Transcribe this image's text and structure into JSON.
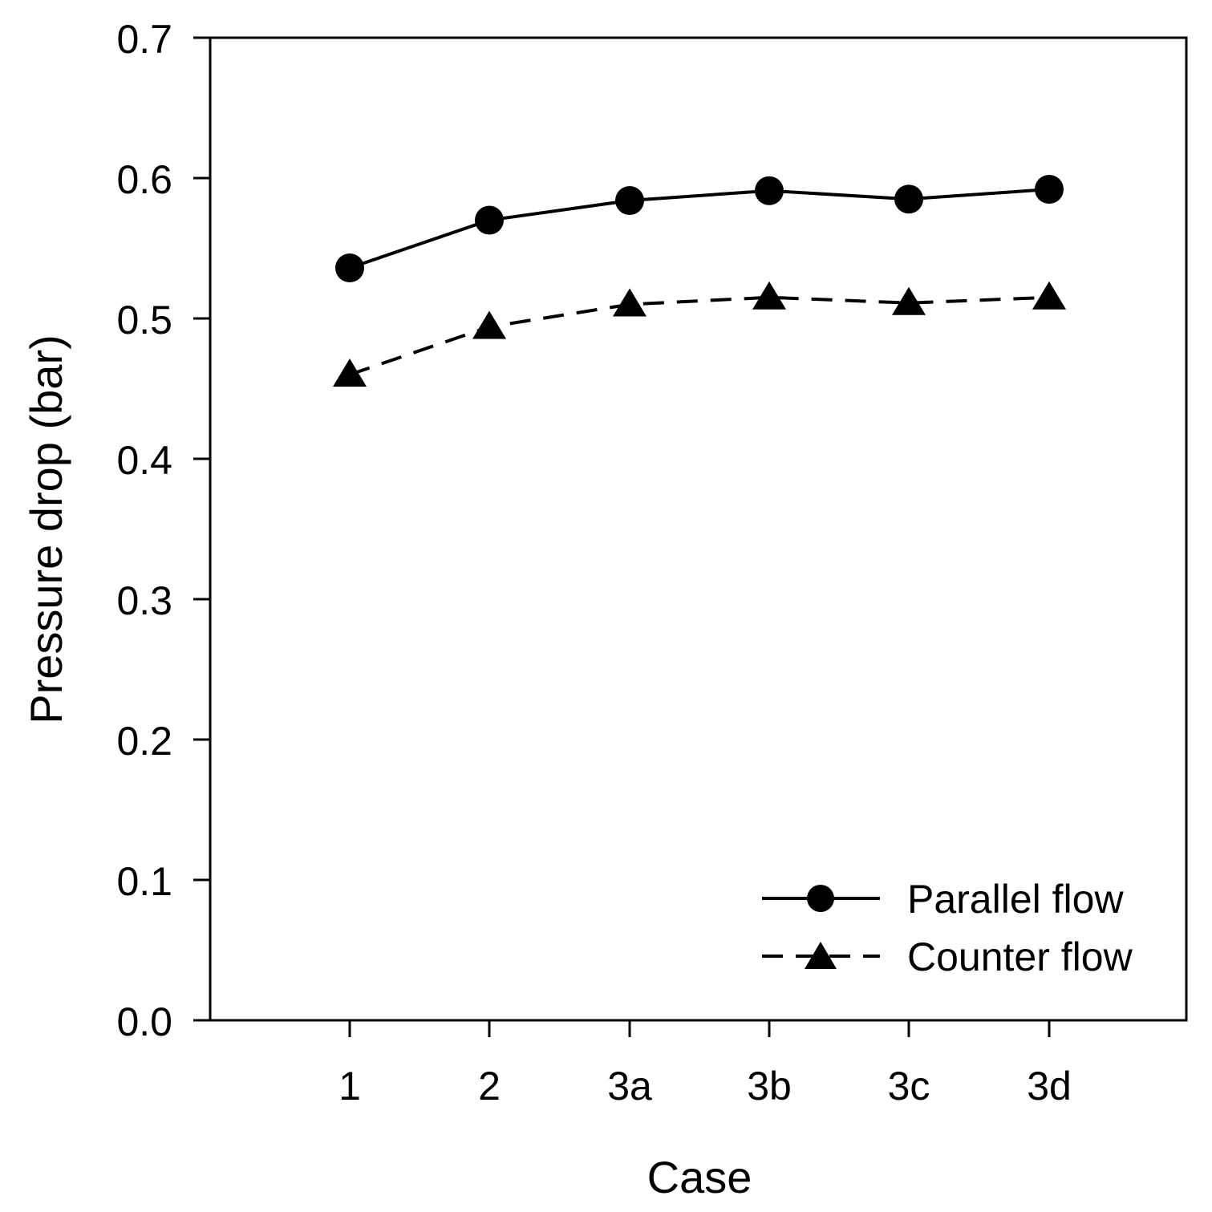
{
  "chart_data": {
    "type": "line",
    "title": "",
    "xlabel": "Case",
    "ylabel": "Pressure drop (bar)",
    "categories": [
      "1",
      "2",
      "3a",
      "3b",
      "3c",
      "3d"
    ],
    "ylim": [
      0.0,
      0.7
    ],
    "yticks": [
      "0.0",
      "0.1",
      "0.2",
      "0.3",
      "0.4",
      "0.5",
      "0.6",
      "0.7"
    ],
    "grid": false,
    "legend_position": "bottom-right",
    "series": [
      {
        "name": "Parallel flow",
        "marker": "circle",
        "line": "solid",
        "values": [
          0.536,
          0.57,
          0.584,
          0.591,
          0.585,
          0.592
        ]
      },
      {
        "name": "Counter flow",
        "marker": "triangle",
        "line": "dashed",
        "values": [
          0.46,
          0.494,
          0.51,
          0.515,
          0.511,
          0.515
        ]
      }
    ],
    "colors": {
      "line": "#000000",
      "background": "#ffffff"
    }
  }
}
